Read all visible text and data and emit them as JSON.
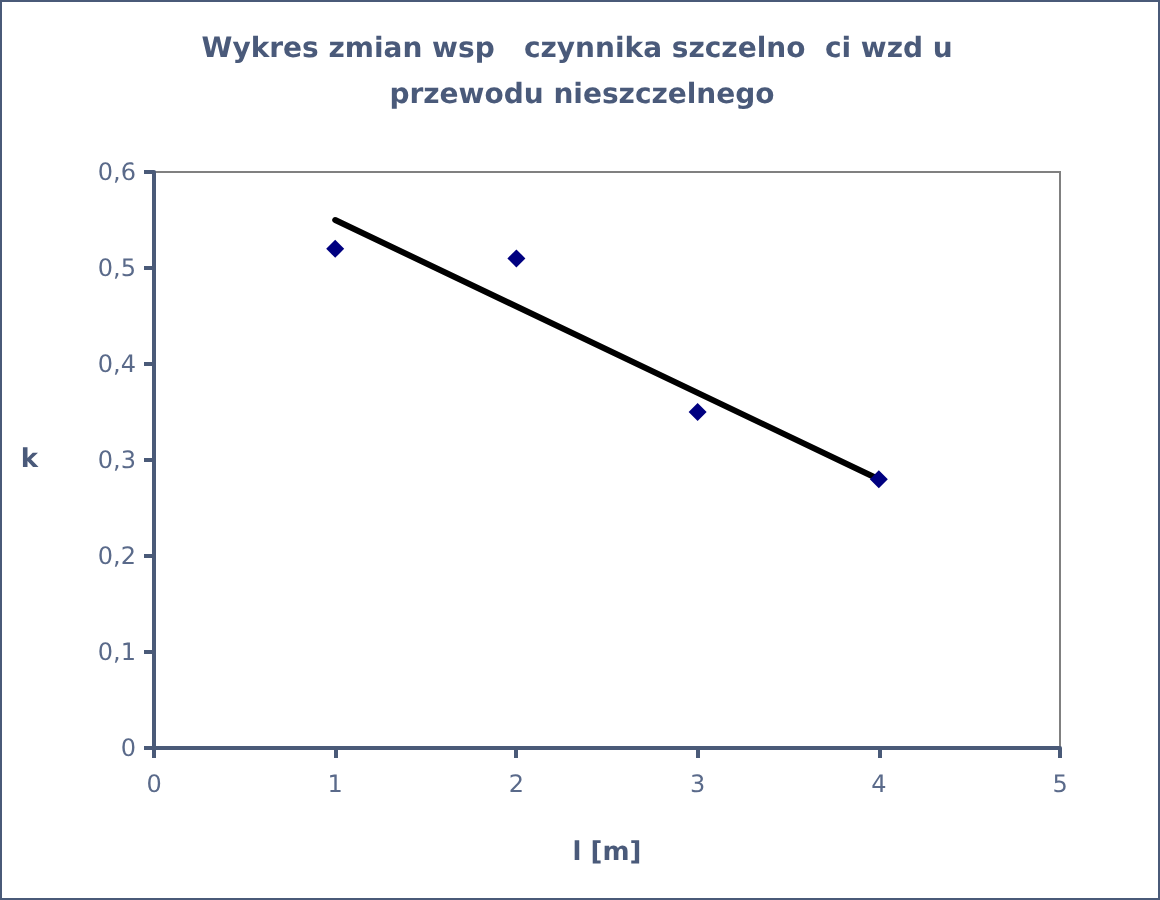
{
  "chart_data": {
    "type": "scatter",
    "title": "Wykres zmian wsp   czynnika szczelno  ci wzd u przewodu nieszczelnego",
    "xlabel": "l [m]",
    "ylabel": "k",
    "xlim": [
      0,
      5
    ],
    "xticks": [
      0,
      1,
      2,
      3,
      4,
      5
    ],
    "ylim": [
      0,
      0.6
    ],
    "yticks": [
      0,
      {
        "value": 0.1,
        "label": "0,1"
      },
      {
        "value": 0.2,
        "label": "0,2"
      },
      {
        "value": 0.3,
        "label": "0,3"
      },
      {
        "value": 0.4,
        "label": "0,4"
      },
      {
        "value": 0.5,
        "label": "0,5"
      },
      {
        "value": 0.6,
        "label": "0,6"
      }
    ],
    "marker": "diamond",
    "series": [
      {
        "color": "#000080",
        "x": [
          1,
          2,
          3,
          4
        ],
        "values": [
          0.52,
          0.51,
          0.35,
          0.28
        ]
      },
      {
        "type": "line",
        "marker": "none",
        "color": "#000000",
        "x": [
          1,
          4
        ],
        "values": [
          0.55,
          0.28
        ]
      }
    ]
  }
}
